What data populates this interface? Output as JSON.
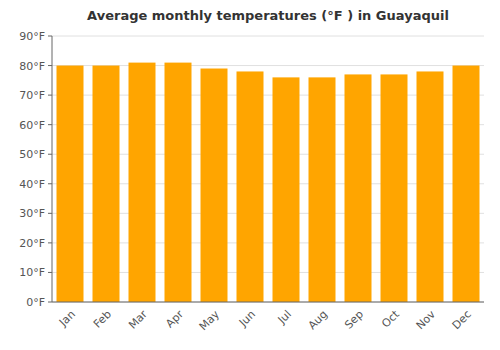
{
  "chart_data": {
    "type": "bar",
    "title": "Average monthly temperatures (°F ) in Guayaquil",
    "categories": [
      "Jan",
      "Feb",
      "Mar",
      "Apr",
      "May",
      "Jun",
      "Jul",
      "Aug",
      "Sep",
      "Oct",
      "Nov",
      "Dec"
    ],
    "values": [
      80,
      80,
      81,
      81,
      79,
      78,
      76,
      76,
      77,
      77,
      78,
      80
    ],
    "color": "#FFA500",
    "ylim": [
      0,
      90
    ],
    "yticks": [
      {
        "value": 0,
        "label": "0°F"
      },
      {
        "value": 10,
        "label": "10°F"
      },
      {
        "value": 20,
        "label": "20°F"
      },
      {
        "value": 30,
        "label": "30°F"
      },
      {
        "value": 40,
        "label": "40°F"
      },
      {
        "value": 50,
        "label": "50°F"
      },
      {
        "value": 60,
        "label": "60°F"
      },
      {
        "value": 70,
        "label": "70°F"
      },
      {
        "value": 80,
        "label": "80°F"
      },
      {
        "value": 90,
        "label": "90°F"
      }
    ],
    "grid": true
  }
}
